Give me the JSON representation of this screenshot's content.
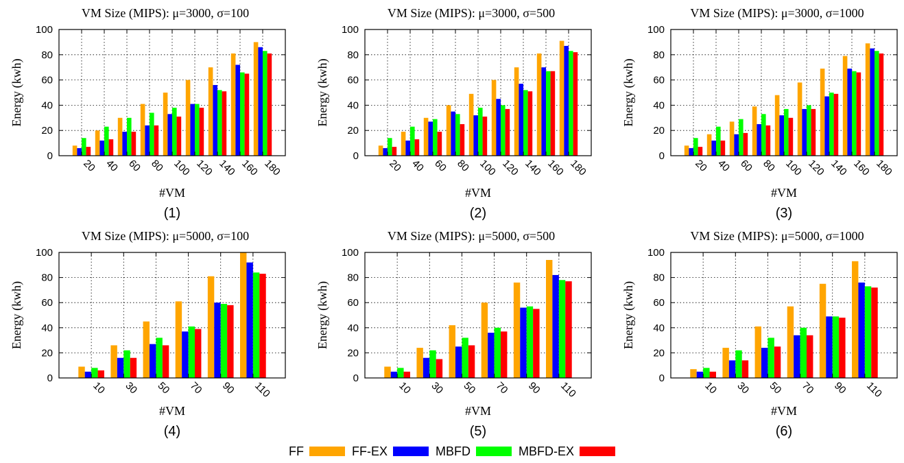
{
  "legend": [
    {
      "name": "FF",
      "color": "#FFA500"
    },
    {
      "name": "FF-EX",
      "color": "#0000FF"
    },
    {
      "name": "MBFD",
      "color": "#00FF00"
    },
    {
      "name": "MBFD-EX",
      "color": "#FF0000"
    }
  ],
  "chart_data": [
    {
      "type": "bar",
      "title": "VM Size (MIPS): μ=3000, σ=100",
      "xlabel": "#VM",
      "ylabel": "Energy (kwh)",
      "caption": "(1)",
      "ylim": [
        0,
        100
      ],
      "yticks": [
        0,
        20,
        40,
        60,
        80,
        100
      ],
      "grid": true,
      "categories": [
        "20",
        "40",
        "60",
        "80",
        "100",
        "120",
        "140",
        "160",
        "180"
      ],
      "series": [
        {
          "name": "FF",
          "values": [
            8,
            20,
            30,
            41,
            50,
            60,
            70,
            81,
            90
          ]
        },
        {
          "name": "FF-EX",
          "values": [
            6,
            12,
            19,
            24,
            33,
            41,
            56,
            72,
            86
          ]
        },
        {
          "name": "MBFD",
          "values": [
            14,
            23,
            30,
            34,
            38,
            41,
            52,
            66,
            83
          ]
        },
        {
          "name": "MBFD-EX",
          "values": [
            7,
            13,
            19,
            24,
            31,
            38,
            51,
            65,
            81
          ]
        }
      ]
    },
    {
      "type": "bar",
      "title": "VM Size (MIPS): μ=3000, σ=500",
      "xlabel": "#VM",
      "ylabel": "Energy (kwh)",
      "caption": "(2)",
      "ylim": [
        0,
        100
      ],
      "yticks": [
        0,
        20,
        40,
        60,
        80,
        100
      ],
      "grid": true,
      "categories": [
        "20",
        "40",
        "60",
        "80",
        "100",
        "120",
        "140",
        "160",
        "180"
      ],
      "series": [
        {
          "name": "FF",
          "values": [
            8,
            19,
            30,
            40,
            49,
            60,
            70,
            81,
            91
          ]
        },
        {
          "name": "FF-EX",
          "values": [
            6,
            12,
            27,
            35,
            32,
            45,
            57,
            70,
            87
          ]
        },
        {
          "name": "MBFD",
          "values": [
            14,
            23,
            29,
            33,
            38,
            40,
            52,
            67,
            83
          ]
        },
        {
          "name": "MBFD-EX",
          "values": [
            7,
            13,
            19,
            25,
            31,
            37,
            51,
            67,
            82
          ]
        }
      ]
    },
    {
      "type": "bar",
      "title": "VM Size (MIPS): μ=3000, σ=1000",
      "xlabel": "#VM",
      "ylabel": "Energy (kwh)",
      "caption": "(3)",
      "ylim": [
        0,
        100
      ],
      "yticks": [
        0,
        20,
        40,
        60,
        80,
        100
      ],
      "grid": true,
      "categories": [
        "20",
        "40",
        "60",
        "80",
        "100",
        "120",
        "140",
        "160",
        "180"
      ],
      "series": [
        {
          "name": "FF",
          "values": [
            8,
            17,
            27,
            39,
            48,
            58,
            69,
            79,
            89
          ]
        },
        {
          "name": "FF-EX",
          "values": [
            6,
            12,
            17,
            25,
            32,
            37,
            47,
            69,
            85
          ]
        },
        {
          "name": "MBFD",
          "values": [
            14,
            23,
            29,
            33,
            37,
            40,
            50,
            67,
            83
          ]
        },
        {
          "name": "MBFD-EX",
          "values": [
            7,
            12,
            18,
            24,
            30,
            37,
            49,
            66,
            81
          ]
        }
      ]
    },
    {
      "type": "bar",
      "title": "VM Size (MIPS): μ=5000, σ=100",
      "xlabel": "#VM",
      "ylabel": "Energy (kwh)",
      "caption": "(4)",
      "ylim": [
        0,
        100
      ],
      "yticks": [
        0,
        20,
        40,
        60,
        80,
        100
      ],
      "grid": true,
      "categories": [
        "10",
        "30",
        "50",
        "70",
        "90",
        "110"
      ],
      "series": [
        {
          "name": "FF",
          "values": [
            9,
            26,
            45,
            61,
            81,
            100
          ]
        },
        {
          "name": "FF-EX",
          "values": [
            5,
            16,
            27,
            37,
            60,
            92
          ]
        },
        {
          "name": "MBFD",
          "values": [
            8,
            22,
            32,
            41,
            59,
            84
          ]
        },
        {
          "name": "MBFD-EX",
          "values": [
            6,
            16,
            26,
            39,
            58,
            83
          ]
        }
      ]
    },
    {
      "type": "bar",
      "title": "VM Size (MIPS): μ=5000, σ=500",
      "xlabel": "#VM",
      "ylabel": "Energy (kwh)",
      "caption": "(5)",
      "ylim": [
        0,
        100
      ],
      "yticks": [
        0,
        20,
        40,
        60,
        80,
        100
      ],
      "grid": true,
      "categories": [
        "10",
        "30",
        "50",
        "70",
        "90",
        "110"
      ],
      "series": [
        {
          "name": "FF",
          "values": [
            9,
            24,
            42,
            60,
            76,
            94
          ]
        },
        {
          "name": "FF-EX",
          "values": [
            5,
            16,
            25,
            36,
            56,
            82
          ]
        },
        {
          "name": "MBFD",
          "values": [
            8,
            22,
            32,
            40,
            57,
            78
          ]
        },
        {
          "name": "MBFD-EX",
          "values": [
            5,
            15,
            26,
            37,
            55,
            77
          ]
        }
      ]
    },
    {
      "type": "bar",
      "title": "VM Size (MIPS): μ=5000, σ=1000",
      "xlabel": "#VM",
      "ylabel": "Energy (kwh)",
      "caption": "(6)",
      "ylim": [
        0,
        100
      ],
      "yticks": [
        0,
        20,
        40,
        60,
        80,
        100
      ],
      "grid": true,
      "categories": [
        "10",
        "30",
        "50",
        "70",
        "90",
        "110"
      ],
      "series": [
        {
          "name": "FF",
          "values": [
            7,
            24,
            41,
            57,
            75,
            93
          ]
        },
        {
          "name": "FF-EX",
          "values": [
            5,
            14,
            24,
            34,
            49,
            76
          ]
        },
        {
          "name": "MBFD",
          "values": [
            8,
            22,
            32,
            40,
            49,
            73
          ]
        },
        {
          "name": "MBFD-EX",
          "values": [
            5,
            14,
            25,
            34,
            48,
            72
          ]
        }
      ]
    }
  ]
}
